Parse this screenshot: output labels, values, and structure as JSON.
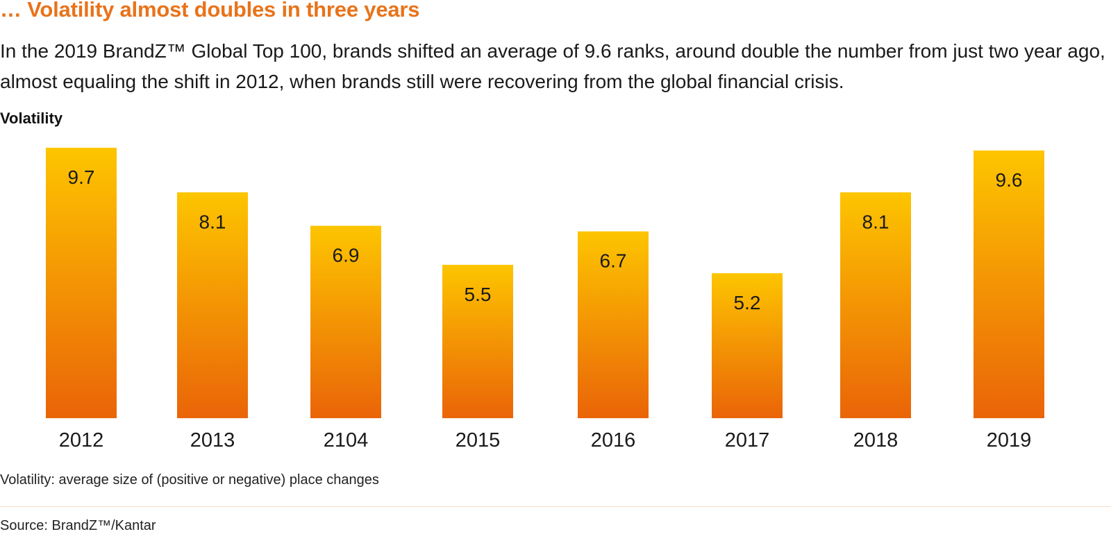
{
  "header": {
    "title": "… Volatility almost doubles in three years",
    "intro": "In the 2019 BrandZ™ Global Top 100, brands shifted an average of 9.6 ranks, around double the number from just two year ago, almost equaling the shift in 2012, when brands still were recovering from the global financial crisis."
  },
  "chart_label": "Volatility",
  "footnote": "Volatility: average size of (positive or negative) place changes",
  "source": "Source: BrandZ™/Kantar",
  "colors": {
    "title": "#e8731a",
    "bar_top": "#fdc500",
    "bar_bottom": "#ea6408",
    "text": "#1a1a1a"
  },
  "chart_data": {
    "type": "bar",
    "title": "Volatility",
    "categories": [
      "2012",
      "2013",
      "2104",
      "2015",
      "2016",
      "2017",
      "2018",
      "2019"
    ],
    "values": [
      9.7,
      8.1,
      6.9,
      5.5,
      6.7,
      5.2,
      8.1,
      9.6
    ],
    "value_labels": [
      "9.7",
      "8.1",
      "6.9",
      "5.5",
      "6.7",
      "5.2",
      "8.1",
      "9.6"
    ],
    "xlabel": "",
    "ylabel": "",
    "ylim": [
      0,
      9.7
    ],
    "grid": false,
    "legend": "none"
  }
}
